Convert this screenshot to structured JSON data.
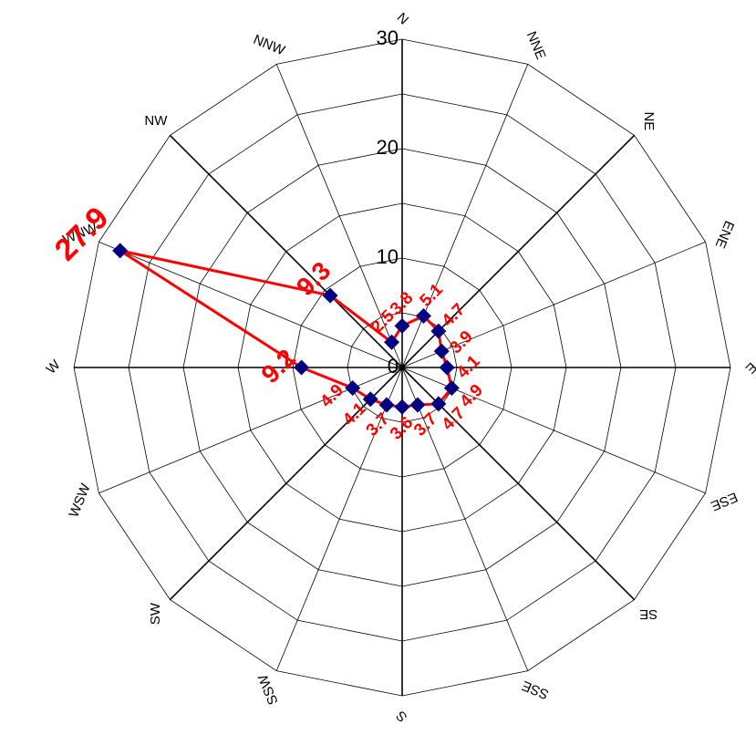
{
  "chart_data": {
    "type": "radar",
    "directions": [
      "N",
      "NNE",
      "NE",
      "ENE",
      "E",
      "ESE",
      "SE",
      "SSE",
      "S",
      "SSW",
      "SW",
      "WSW",
      "W",
      "WNW",
      "NW",
      "NNW"
    ],
    "series": [
      {
        "values": [
          3.8,
          5.1,
          4.7,
          3.9,
          4.1,
          4.9,
          4.7,
          3.7,
          3.6,
          3.7,
          4.1,
          4.9,
          9.2,
          27.9,
          9.3,
          2.5
        ],
        "labels": [
          "3.8",
          "5.1",
          "4.7",
          "3.9",
          "4.1",
          "4.9",
          "4.7",
          "3.7",
          "3.6",
          "3.7",
          "4.1",
          "4.9",
          "9.2",
          "27.9",
          "9.3",
          "2.5"
        ]
      }
    ],
    "radial_ticks": [
      "0",
      "10",
      "20",
      "30"
    ],
    "radial_tick_values": [
      0,
      10,
      20,
      30
    ],
    "r_range": [
      0,
      30
    ],
    "ring_values": [
      5,
      10,
      15,
      20,
      25,
      30
    ],
    "legend": "none",
    "colors": {
      "line": "#ff0000",
      "marker": "#000080",
      "labels": "#ff0000",
      "grid": "#000000"
    }
  }
}
